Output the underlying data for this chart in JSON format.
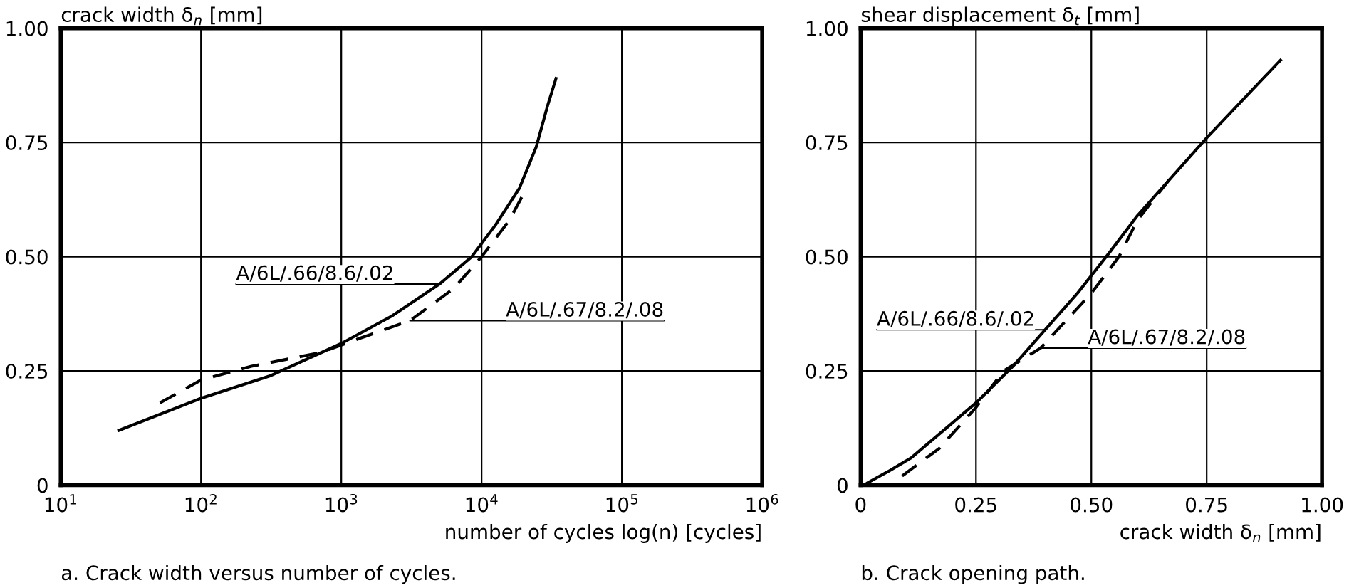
{
  "chart_data": [
    {
      "type": "line",
      "title": "a. Crack width versus number of cycles.",
      "xlabel": "number of cycles log(n) [cycles]",
      "ylabel": "crack width δ$_{n}$ [mm]",
      "log": "x",
      "grid": true,
      "legend": false,
      "xlim": [
        10,
        1000000
      ],
      "xticks": [
        {
          "value": 10,
          "label": "10$^{1}$"
        },
        {
          "value": 100,
          "label": "10$^{2}$"
        },
        {
          "value": 1000,
          "label": "10$^{3}$"
        },
        {
          "value": 10000,
          "label": "10$^{4}$"
        },
        {
          "value": 100000,
          "label": "10$^{5}$"
        },
        {
          "value": 1000000,
          "label": "10$^{6}$"
        }
      ],
      "ylim": [
        0,
        1
      ],
      "yticks": [
        {
          "value": 0,
          "label": "0"
        },
        {
          "value": 0.25,
          "label": "0.25"
        },
        {
          "value": 0.5,
          "label": "0.50"
        },
        {
          "value": 0.75,
          "label": "0.75"
        },
        {
          "value": 1,
          "label": "1.00"
        }
      ],
      "series": [
        {
          "name": "A/6L/.66/8.6/.02",
          "color": "#000000",
          "line_style": "solid",
          "x": [
            26,
            100,
            316,
            1000,
            2290,
            5010,
            8510,
            12600,
            18600,
            24500,
            29500,
            33900
          ],
          "values": [
            0.12,
            0.19,
            0.24,
            0.31,
            0.37,
            0.44,
            0.5,
            0.57,
            0.65,
            0.74,
            0.83,
            0.89
          ]
        },
        {
          "name": "A/6L/.67/8.2/.08",
          "color": "#000000",
          "line_style": "dashed",
          "x": [
            51,
            100,
            229,
            708,
            1320,
            3090,
            6310,
            10000,
            15800,
            20900
          ],
          "values": [
            0.18,
            0.23,
            0.26,
            0.29,
            0.32,
            0.36,
            0.43,
            0.5,
            0.58,
            0.65
          ]
        }
      ]
    },
    {
      "type": "line",
      "title": "b. Crack opening path.",
      "xlabel": "crack width δ$_{n}$ [mm]",
      "ylabel": "shear displacement δ$_{t}$ [mm]",
      "grid": true,
      "legend": false,
      "xlim": [
        0,
        1
      ],
      "xticks": [
        {
          "value": 0,
          "label": "0"
        },
        {
          "value": 0.25,
          "label": "0.25"
        },
        {
          "value": 0.5,
          "label": "0.50"
        },
        {
          "value": 0.75,
          "label": "0.75"
        },
        {
          "value": 1,
          "label": "1.00"
        }
      ],
      "ylim": [
        0,
        1
      ],
      "yticks": [
        {
          "value": 0,
          "label": "0"
        },
        {
          "value": 0.25,
          "label": "0.25"
        },
        {
          "value": 0.5,
          "label": "0.50"
        },
        {
          "value": 0.75,
          "label": "0.75"
        },
        {
          "value": 1,
          "label": "1.00"
        }
      ],
      "series": [
        {
          "name": "A/6L/.66/8.6/.02",
          "color": "#000000",
          "line_style": "solid",
          "x": [
            0.015,
            0.06,
            0.11,
            0.18,
            0.25,
            0.33,
            0.4,
            0.47,
            0.54,
            0.6,
            0.75,
            0.91
          ],
          "values": [
            0.005,
            0.03,
            0.06,
            0.12,
            0.18,
            0.26,
            0.34,
            0.42,
            0.51,
            0.59,
            0.76,
            0.93
          ]
        },
        {
          "name": "A/6L/.67/8.2/.08",
          "color": "#000000",
          "line_style": "dashed",
          "x": [
            0.09,
            0.17,
            0.25,
            0.31,
            0.39,
            0.5,
            0.56,
            0.6,
            0.67
          ],
          "values": [
            0.02,
            0.08,
            0.17,
            0.25,
            0.3,
            0.42,
            0.5,
            0.58,
            0.67
          ]
        }
      ]
    }
  ]
}
